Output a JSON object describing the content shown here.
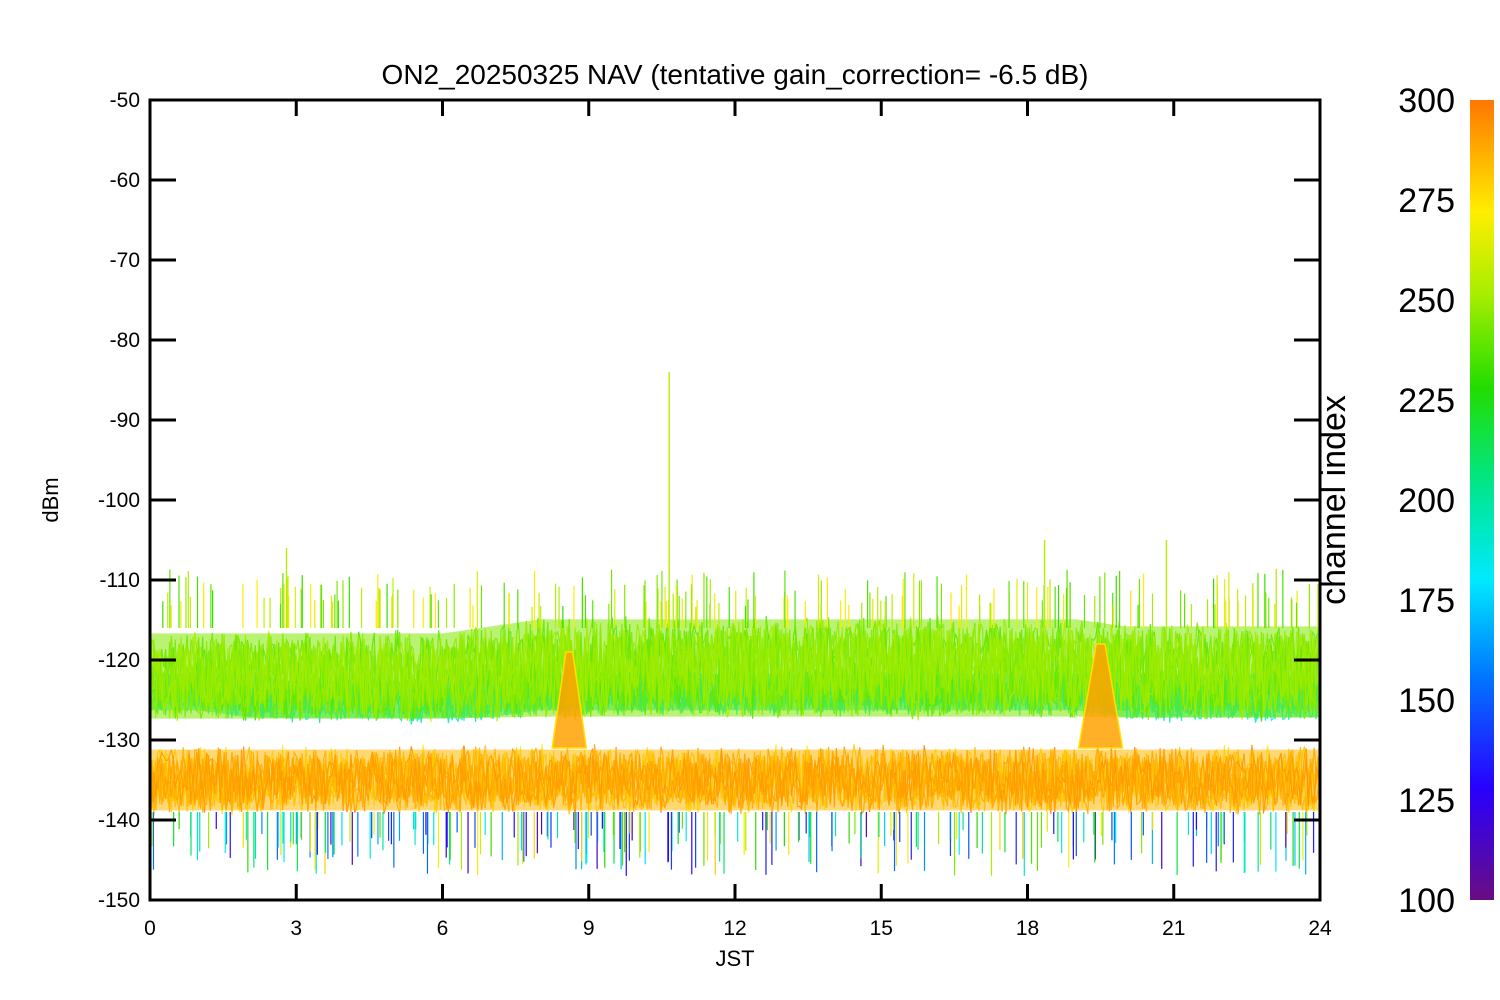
{
  "chart_data": {
    "type": "line",
    "title": "ON2_20250325 NAV (tentative gain_correction= -6.5 dB)",
    "xlabel": "JST",
    "ylabel": "dBm",
    "xlim": [
      0,
      24
    ],
    "ylim": [
      -150,
      -50
    ],
    "xticks": [
      0,
      3,
      6,
      9,
      12,
      15,
      18,
      21,
      24
    ],
    "yticks": [
      -50,
      -60,
      -70,
      -80,
      -90,
      -100,
      -110,
      -120,
      -130,
      -140,
      -150
    ],
    "grid": false,
    "colorbar": {
      "label": "channel index",
      "range": [
        100,
        300
      ],
      "ticks": [
        300,
        275,
        250,
        225,
        200,
        175,
        150,
        125,
        100
      ],
      "colormap": "rainbow"
    },
    "bands": [
      {
        "channel_range": [
          270,
          300
        ],
        "name": "",
        "x": [
          0,
          1,
          2,
          3,
          4,
          5,
          6,
          7,
          8,
          9,
          10,
          11,
          12,
          13,
          14,
          15,
          16,
          17,
          18,
          19,
          20,
          21,
          22,
          23,
          24
        ],
        "y_low": [
          -140,
          -140,
          -140,
          -140,
          -140,
          -140,
          -140,
          -140,
          -140,
          -140,
          -140,
          -140,
          -140,
          -140,
          -140,
          -140,
          -140,
          -140,
          -140,
          -140,
          -140,
          -140,
          -140,
          -140,
          -140
        ],
        "y_high": [
          -130,
          -130,
          -130,
          -130,
          -130,
          -130,
          -130,
          -130,
          -130,
          -130,
          -130,
          -130,
          -130,
          -130,
          -130,
          -130,
          -130,
          -130,
          -130,
          -130,
          -130,
          -130,
          -130,
          -130,
          -130
        ]
      },
      {
        "channel_range": [
          230,
          260
        ],
        "name": "",
        "x": [
          0,
          1,
          2,
          3,
          4,
          5,
          6,
          7,
          8,
          9,
          10,
          11,
          12,
          13,
          14,
          15,
          16,
          17,
          18,
          19,
          20,
          21,
          22,
          23,
          24
        ],
        "y_low": [
          -129,
          -129,
          -129,
          -129,
          -129,
          -129,
          -129,
          -129,
          -129,
          -129,
          -129,
          -129,
          -129,
          -129,
          -129,
          -129,
          -129,
          -129,
          -129,
          -129,
          -129,
          -129,
          -129,
          -129,
          -129
        ],
        "y_high": [
          -115,
          -115,
          -115,
          -115,
          -115,
          -115,
          -115,
          -114,
          -113,
          -113,
          -113,
          -113,
          -113,
          -113,
          -113,
          -113,
          -113,
          -113,
          -113,
          -113,
          -114,
          -114,
          -114,
          -114,
          -114
        ]
      },
      {
        "channel_range": [
          185,
          205
        ],
        "name": "",
        "x": [
          0,
          1,
          2,
          3,
          4,
          5,
          6,
          7,
          8,
          9,
          10,
          11,
          12,
          13,
          14,
          15,
          16,
          17,
          18,
          19,
          20,
          21,
          22,
          23,
          24
        ],
        "y_low": [
          -127,
          -127,
          -128,
          -128,
          -128,
          -128,
          -128,
          -128,
          -127,
          -127,
          -127,
          -127,
          -127,
          -127,
          -127,
          -127,
          -127,
          -127,
          -127,
          -127,
          -128,
          -128,
          -128,
          -128,
          -128
        ],
        "y_high": [
          -121,
          -121,
          -121,
          -122,
          -122,
          -122,
          -122,
          -121,
          -121,
          -121,
          -121,
          -121,
          -121,
          -121,
          -121,
          -121,
          -121,
          -121,
          -121,
          -121,
          -121,
          -121,
          -121,
          -121,
          -121
        ]
      }
    ],
    "peaks": [
      {
        "x": 8.6,
        "y": -119,
        "width": 0.35
      },
      {
        "x": 19.5,
        "y": -118,
        "width": 0.45
      }
    ],
    "spikes": [
      {
        "x": 10.65,
        "y": -84
      },
      {
        "x": 2.8,
        "y": -106
      },
      {
        "x": 18.35,
        "y": -105
      },
      {
        "x": 20.85,
        "y": -105
      }
    ]
  }
}
